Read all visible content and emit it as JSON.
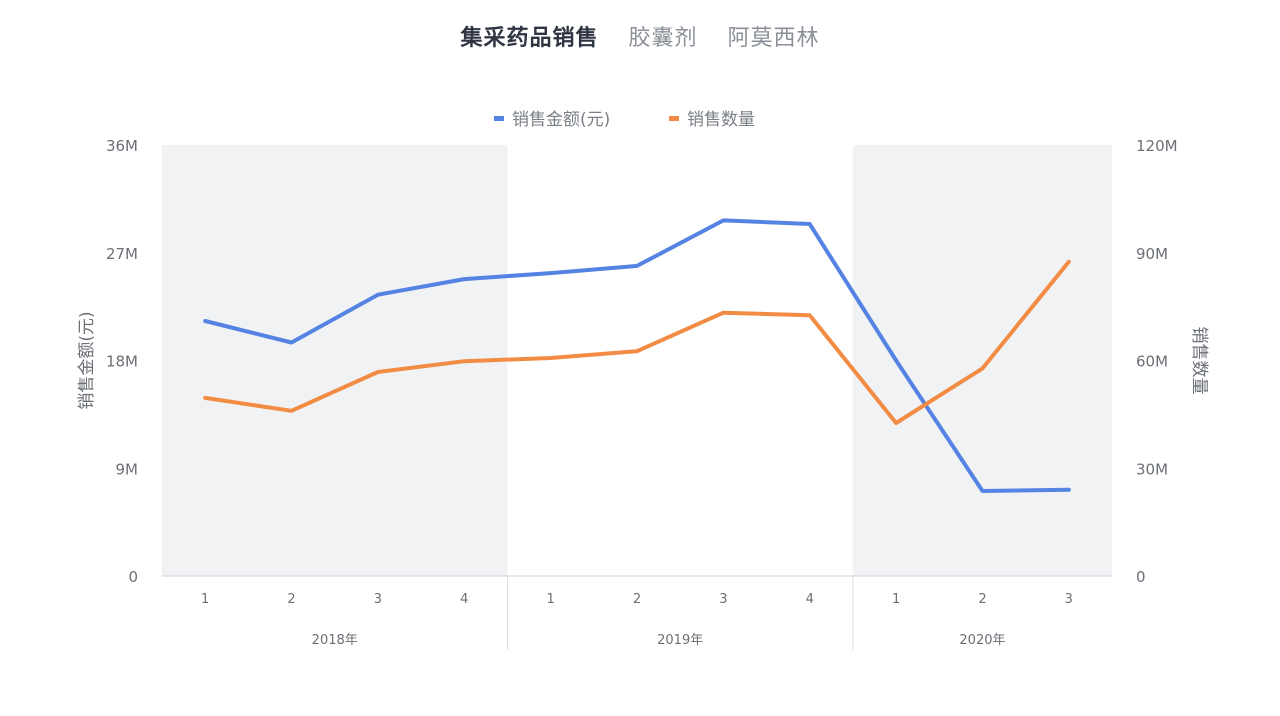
{
  "title": {
    "main": "集采药品销售",
    "subs": [
      "胶囊剂",
      "阿莫西林"
    ]
  },
  "chart_data": {
    "type": "line",
    "x": [
      {
        "year": "2018年",
        "quarter": "1"
      },
      {
        "year": "2018年",
        "quarter": "2"
      },
      {
        "year": "2018年",
        "quarter": "3"
      },
      {
        "year": "2018年",
        "quarter": "4"
      },
      {
        "year": "2019年",
        "quarter": "1"
      },
      {
        "year": "2019年",
        "quarter": "2"
      },
      {
        "year": "2019年",
        "quarter": "3"
      },
      {
        "year": "2019年",
        "quarter": "4"
      },
      {
        "year": "2020年",
        "quarter": "1"
      },
      {
        "year": "2020年",
        "quarter": "2"
      },
      {
        "year": "2020年",
        "quarter": "3"
      }
    ],
    "year_groups": [
      {
        "label": "2018年",
        "count": 4,
        "shaded": true
      },
      {
        "label": "2019年",
        "count": 4,
        "shaded": false
      },
      {
        "label": "2020年",
        "count": 3,
        "shaded": true
      }
    ],
    "series": [
      {
        "name": "销售金额(元)",
        "axis": "left",
        "color": "#5583e3",
        "values": [
          21.3,
          19.5,
          23.5,
          24.8,
          25.3,
          25.9,
          29.7,
          29.4,
          18.0,
          7.1,
          7.2
        ]
      },
      {
        "name": "销售数量",
        "axis": "right",
        "color": "#f28c45",
        "values": [
          49.6,
          46.0,
          56.8,
          59.8,
          60.7,
          62.6,
          73.3,
          72.6,
          42.6,
          57.8,
          87.5
        ]
      }
    ],
    "y_left": {
      "label": "销售金额(元)",
      "range": [
        0,
        36
      ],
      "ticks": [
        0,
        9,
        18,
        27,
        36
      ],
      "tick_labels": [
        "0",
        "9M",
        "18M",
        "27M",
        "36M"
      ]
    },
    "y_right": {
      "label": "销售数量",
      "range": [
        0,
        120
      ],
      "ticks": [
        0,
        30,
        60,
        90,
        120
      ],
      "tick_labels": [
        "0",
        "30M",
        "60M",
        "90M",
        "120M"
      ]
    },
    "legend_position": "top-center",
    "grid": false,
    "colors": {
      "shade": "#f1f2f4",
      "axis": "#cfd2d6",
      "divider": "#dddfe3"
    }
  }
}
